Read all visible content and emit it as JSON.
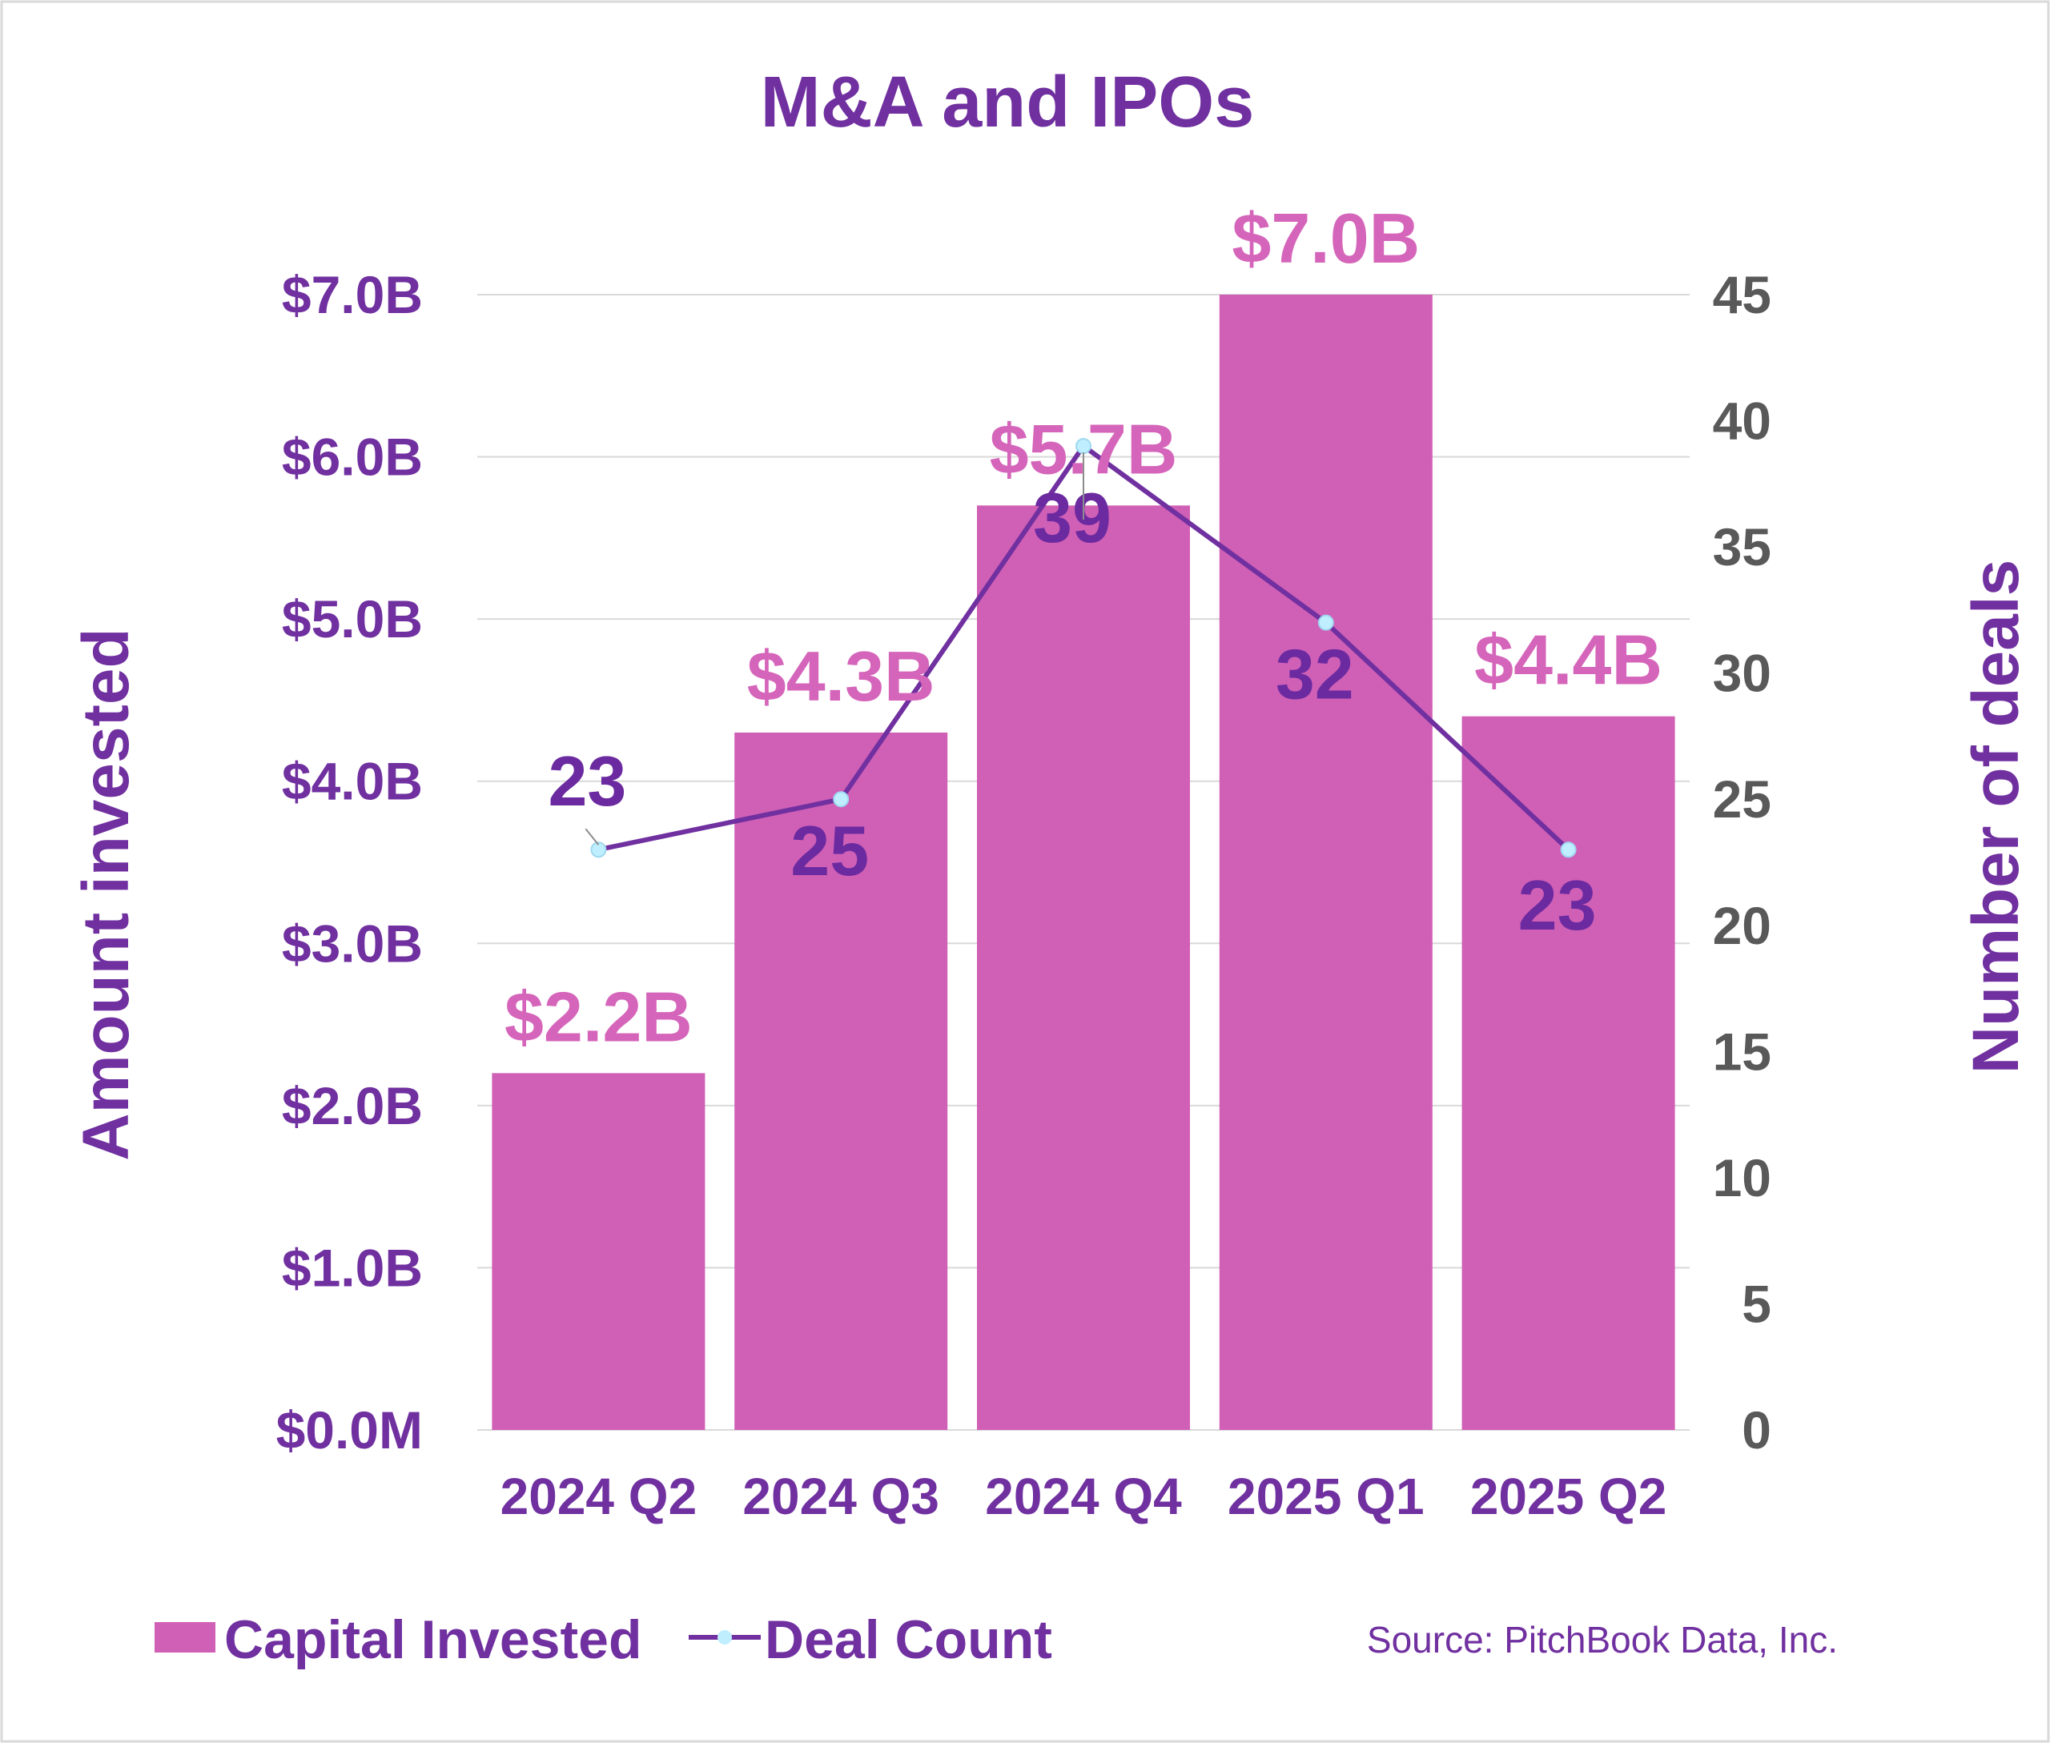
{
  "chart_data": {
    "type": "bar",
    "title": "M&A and IPOs",
    "categories": [
      "2024 Q2",
      "2024 Q3",
      "2024 Q4",
      "2025 Q1",
      "2025 Q2"
    ],
    "series": [
      {
        "name": "Capital Invested",
        "type": "bar",
        "axis": "left",
        "values": [
          2.2,
          4.3,
          5.7,
          7.0,
          4.4
        ],
        "labels": [
          "$2.2B",
          "$4.3B",
          "$5.7B",
          "$7.0B",
          "$4.4B"
        ],
        "color": "#d05fb6"
      },
      {
        "name": "Deal Count",
        "type": "line",
        "axis": "right",
        "values": [
          23,
          25,
          39,
          32,
          23
        ],
        "labels": [
          "23",
          "25",
          "39",
          "32",
          "23"
        ],
        "color": "#7030a0",
        "marker_color": "#bfefff"
      }
    ],
    "y_left": {
      "label": "Amount invested",
      "ylim": [
        0,
        7
      ],
      "ticks": [
        0,
        1,
        2,
        3,
        4,
        5,
        6,
        7
      ],
      "tick_labels": [
        "$0.0M",
        "$1.0B",
        "$2.0B",
        "$3.0B",
        "$4.0B",
        "$5.0B",
        "$6.0B",
        "$7.0B"
      ],
      "color": "#7030a0"
    },
    "y_right": {
      "label": "Number of deals",
      "ylim": [
        0,
        45
      ],
      "ticks": [
        0,
        5,
        10,
        15,
        20,
        25,
        30,
        35,
        40,
        45
      ],
      "tick_labels": [
        "0",
        "5",
        "10",
        "15",
        "20",
        "25",
        "30",
        "35",
        "40",
        "45"
      ],
      "color": "#595959"
    },
    "grid": true,
    "legend": {
      "position": "bottom-left",
      "items": [
        "Capital Invested",
        "Deal Count"
      ]
    },
    "source": "Source: PitchBook Data, Inc."
  },
  "colors": {
    "title": "#7030a0",
    "bar": "#d05fb6",
    "bar_label": "#d565ba",
    "line": "#7030a0",
    "count_label": "#6b2aa0",
    "grid": "#d9d9d9",
    "right_ticks": "#595959"
  }
}
